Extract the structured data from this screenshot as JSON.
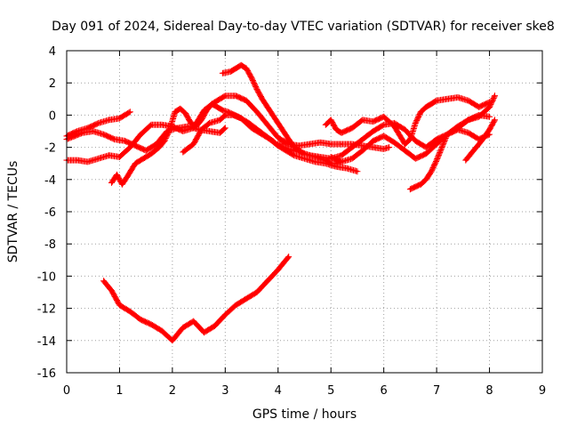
{
  "chart_data": {
    "type": "scatter",
    "title": "Day 091 of 2024, Sidereal Day-to-day VTEC variation (SDTVAR) for receiver ske8",
    "xlabel": "GPS time / hours",
    "ylabel": "SDTVAR / TECUs",
    "xlim": [
      0,
      9
    ],
    "ylim": [
      -16,
      4
    ],
    "x_ticks": [
      "0",
      "1",
      "2",
      "3",
      "4",
      "5",
      "6",
      "7",
      "8",
      "9"
    ],
    "y_ticks": [
      "-16",
      "-14",
      "-12",
      "-10",
      "-8",
      "-6",
      "-4",
      "-2",
      "0",
      "2",
      "4"
    ],
    "grid": true,
    "marker": "+",
    "color": "#ff0000",
    "series": [
      {
        "name": "s1",
        "x": [
          0.0,
          0.2,
          0.4,
          0.6,
          0.8,
          1.0,
          1.2
        ],
        "y": [
          -1.3,
          -1.0,
          -0.8,
          -0.5,
          -0.3,
          -0.2,
          0.2
        ]
      },
      {
        "name": "s2",
        "x": [
          0.0,
          0.3,
          0.5,
          0.7,
          0.9,
          1.1,
          1.3,
          1.5,
          1.7,
          1.9,
          2.1,
          2.3,
          2.5,
          2.7,
          2.9,
          3.0
        ],
        "y": [
          -1.5,
          -1.1,
          -1.0,
          -1.2,
          -1.5,
          -1.6,
          -1.9,
          -2.2,
          -1.8,
          -1.0,
          -0.8,
          -0.7,
          -0.9,
          -1.0,
          -1.1,
          -0.8
        ]
      },
      {
        "name": "s3",
        "x": [
          0.0,
          0.2,
          0.4,
          0.6,
          0.8,
          1.0,
          1.2,
          1.4,
          1.6,
          1.8,
          2.0,
          2.2,
          2.4,
          2.6,
          2.8,
          3.0,
          3.2,
          3.4,
          3.6,
          3.8,
          4.0,
          4.2
        ],
        "y": [
          -2.8,
          -2.8,
          -2.9,
          -2.7,
          -2.5,
          -2.6,
          -2.0,
          -1.2,
          -0.6,
          -0.6,
          -0.7,
          -1.0,
          -0.8,
          0.3,
          0.8,
          1.2,
          1.2,
          0.9,
          0.2,
          -0.6,
          -1.4,
          -1.8
        ]
      },
      {
        "name": "s4",
        "x": [
          0.85,
          0.95,
          1.05,
          1.15,
          1.3,
          1.45,
          1.6,
          1.75,
          1.85,
          1.95,
          2.05,
          2.15,
          2.25,
          2.35,
          2.45,
          2.55,
          2.65,
          2.75,
          2.85,
          2.95,
          3.05,
          3.25,
          3.45,
          3.65,
          3.85,
          4.0,
          4.15,
          4.3,
          4.5,
          4.7,
          4.9,
          5.1,
          5.3,
          5.5
        ],
        "y": [
          -4.2,
          -3.7,
          -4.3,
          -3.8,
          -3.0,
          -2.7,
          -2.4,
          -2.0,
          -1.6,
          -0.9,
          0.2,
          0.4,
          0.1,
          -0.5,
          -0.7,
          -0.3,
          0.3,
          0.7,
          0.5,
          0.3,
          0.2,
          -0.1,
          -0.5,
          -1.0,
          -1.5,
          -1.9,
          -2.2,
          -2.5,
          -2.7,
          -2.9,
          -3.0,
          -3.2,
          -3.3,
          -3.5
        ]
      },
      {
        "name": "s5",
        "x": [
          2.2,
          2.4,
          2.55,
          2.7,
          2.9,
          3.0,
          3.15,
          3.3,
          3.5,
          3.7,
          3.9,
          4.0,
          4.2,
          4.4,
          4.6,
          4.8,
          5.0,
          5.2,
          5.4,
          5.6,
          5.8,
          6.0,
          6.2,
          6.4,
          6.6,
          6.8,
          7.0,
          7.2,
          7.4,
          7.6,
          7.8,
          8.0
        ],
        "y": [
          -2.3,
          -1.8,
          -0.9,
          -0.5,
          -0.3,
          0.0,
          0.0,
          -0.2,
          -0.8,
          -1.2,
          -1.6,
          -1.9,
          -2.1,
          -2.3,
          -2.5,
          -2.6,
          -2.7,
          -2.5,
          -2.0,
          -1.5,
          -1.0,
          -0.6,
          -0.5,
          -0.9,
          -1.6,
          -2.0,
          -1.5,
          -1.2,
          -0.9,
          -1.1,
          -1.5,
          -1.2
        ]
      },
      {
        "name": "s6",
        "x": [
          2.95,
          3.1,
          3.2,
          3.3,
          3.4,
          3.5,
          3.6,
          3.7,
          3.8,
          3.9,
          4.0,
          4.1,
          4.2,
          4.3,
          4.5,
          4.7,
          4.9,
          5.0,
          5.1,
          5.2
        ],
        "y": [
          2.6,
          2.7,
          2.9,
          3.1,
          2.9,
          2.3,
          1.6,
          1.0,
          0.5,
          0.0,
          -0.5,
          -1.0,
          -1.5,
          -2.0,
          -2.4,
          -2.6,
          -2.8,
          -3.0,
          -3.0,
          -2.9
        ]
      },
      {
        "name": "s7",
        "x": [
          4.0,
          4.2,
          4.4,
          4.6,
          4.8,
          5.0,
          5.2,
          5.4,
          5.6,
          5.8,
          6.0,
          6.1
        ],
        "y": [
          -1.8,
          -1.8,
          -1.9,
          -1.8,
          -1.7,
          -1.8,
          -1.8,
          -1.8,
          -1.9,
          -2.0,
          -2.1,
          -2.0
        ]
      },
      {
        "name": "s8",
        "x": [
          4.9,
          5.0,
          5.1,
          5.2,
          5.4,
          5.6,
          5.8,
          6.0,
          6.2,
          6.4,
          6.5,
          6.6,
          6.7,
          6.8,
          6.9,
          7.0,
          7.2,
          7.4,
          7.6,
          7.8,
          8.0
        ],
        "y": [
          -0.6,
          -0.3,
          -0.9,
          -1.1,
          -0.8,
          -0.3,
          -0.4,
          -0.1,
          -0.7,
          -1.8,
          -1.5,
          -0.5,
          0.2,
          0.5,
          0.7,
          0.9,
          1.0,
          1.1,
          0.9,
          0.5,
          0.8
        ]
      },
      {
        "name": "s9",
        "x": [
          5.0,
          5.2,
          5.4,
          5.6,
          5.8,
          6.0,
          6.2,
          6.4,
          6.6,
          6.8,
          7.0,
          7.2,
          7.4,
          7.6,
          7.8,
          8.0,
          8.1
        ],
        "y": [
          -2.6,
          -2.9,
          -2.7,
          -2.2,
          -1.6,
          -1.3,
          -1.7,
          -2.2,
          -2.7,
          -2.4,
          -1.8,
          -1.2,
          -0.7,
          -0.3,
          -0.1,
          0.5,
          1.2
        ]
      },
      {
        "name": "s10",
        "x": [
          6.5,
          6.7,
          6.8,
          6.9,
          7.0,
          7.1,
          7.2,
          7.4,
          7.6,
          7.8,
          8.0
        ],
        "y": [
          -4.6,
          -4.3,
          -4.0,
          -3.5,
          -2.8,
          -2.0,
          -1.2,
          -0.8,
          -0.3,
          0.0,
          -0.1
        ]
      },
      {
        "name": "s11",
        "x": [
          7.55,
          7.7,
          7.85,
          8.0,
          8.1
        ],
        "y": [
          -2.8,
          -2.2,
          -1.6,
          -0.9,
          -0.3
        ]
      },
      {
        "name": "s12",
        "x": [
          0.7,
          0.85,
          1.0,
          1.2,
          1.4,
          1.6,
          1.8,
          2.0,
          2.2,
          2.4,
          2.6,
          2.8,
          3.0,
          3.2,
          3.4,
          3.6,
          3.8,
          4.0,
          4.2
        ],
        "y": [
          -10.3,
          -10.9,
          -11.8,
          -12.2,
          -12.7,
          -13.0,
          -13.4,
          -14.0,
          -13.2,
          -12.8,
          -13.5,
          -13.1,
          -12.4,
          -11.8,
          -11.4,
          -11.0,
          -10.3,
          -9.6,
          -8.8
        ]
      }
    ]
  }
}
